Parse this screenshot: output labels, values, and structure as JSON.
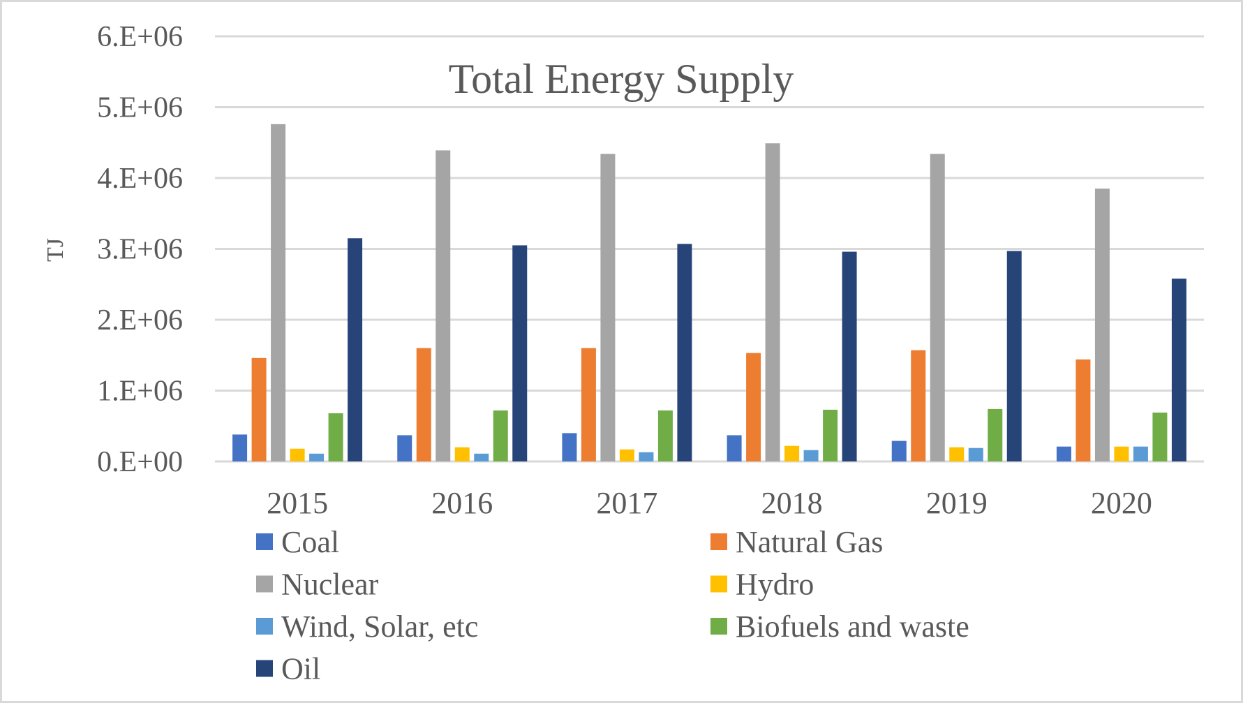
{
  "chart_data": {
    "type": "bar",
    "title": "Total Energy Supply",
    "xlabel": "",
    "ylabel": "TJ",
    "ylim": [
      0,
      6000000
    ],
    "yticks": [
      0,
      1000000,
      2000000,
      3000000,
      4000000,
      5000000,
      6000000
    ],
    "ytick_labels": [
      "0.E+00",
      "1.E+06",
      "2.E+06",
      "3.E+06",
      "4.E+06",
      "5.E+06",
      "6.E+06"
    ],
    "grid": true,
    "legend_position": "bottom",
    "categories": [
      "2015",
      "2016",
      "2017",
      "2018",
      "2019",
      "2020"
    ],
    "series": [
      {
        "name": "Coal",
        "color": "#4472c4",
        "values": [
          380000,
          370000,
          400000,
          370000,
          290000,
          210000
        ]
      },
      {
        "name": "Natural Gas",
        "color": "#ed7d31",
        "values": [
          1460000,
          1600000,
          1600000,
          1530000,
          1570000,
          1440000
        ]
      },
      {
        "name": "Nuclear",
        "color": "#a5a5a5",
        "values": [
          4760000,
          4390000,
          4340000,
          4490000,
          4340000,
          3850000
        ]
      },
      {
        "name": "Hydro",
        "color": "#ffc000",
        "values": [
          180000,
          200000,
          170000,
          220000,
          200000,
          210000
        ]
      },
      {
        "name": "Wind, Solar, etc",
        "color": "#5b9bd5",
        "values": [
          110000,
          110000,
          130000,
          160000,
          190000,
          210000
        ]
      },
      {
        "name": "Biofuels and waste",
        "color": "#70ad47",
        "values": [
          680000,
          720000,
          720000,
          730000,
          740000,
          690000
        ]
      },
      {
        "name": "Oil",
        "color": "#264478",
        "values": [
          3150000,
          3050000,
          3070000,
          2960000,
          2970000,
          2580000
        ]
      }
    ]
  }
}
